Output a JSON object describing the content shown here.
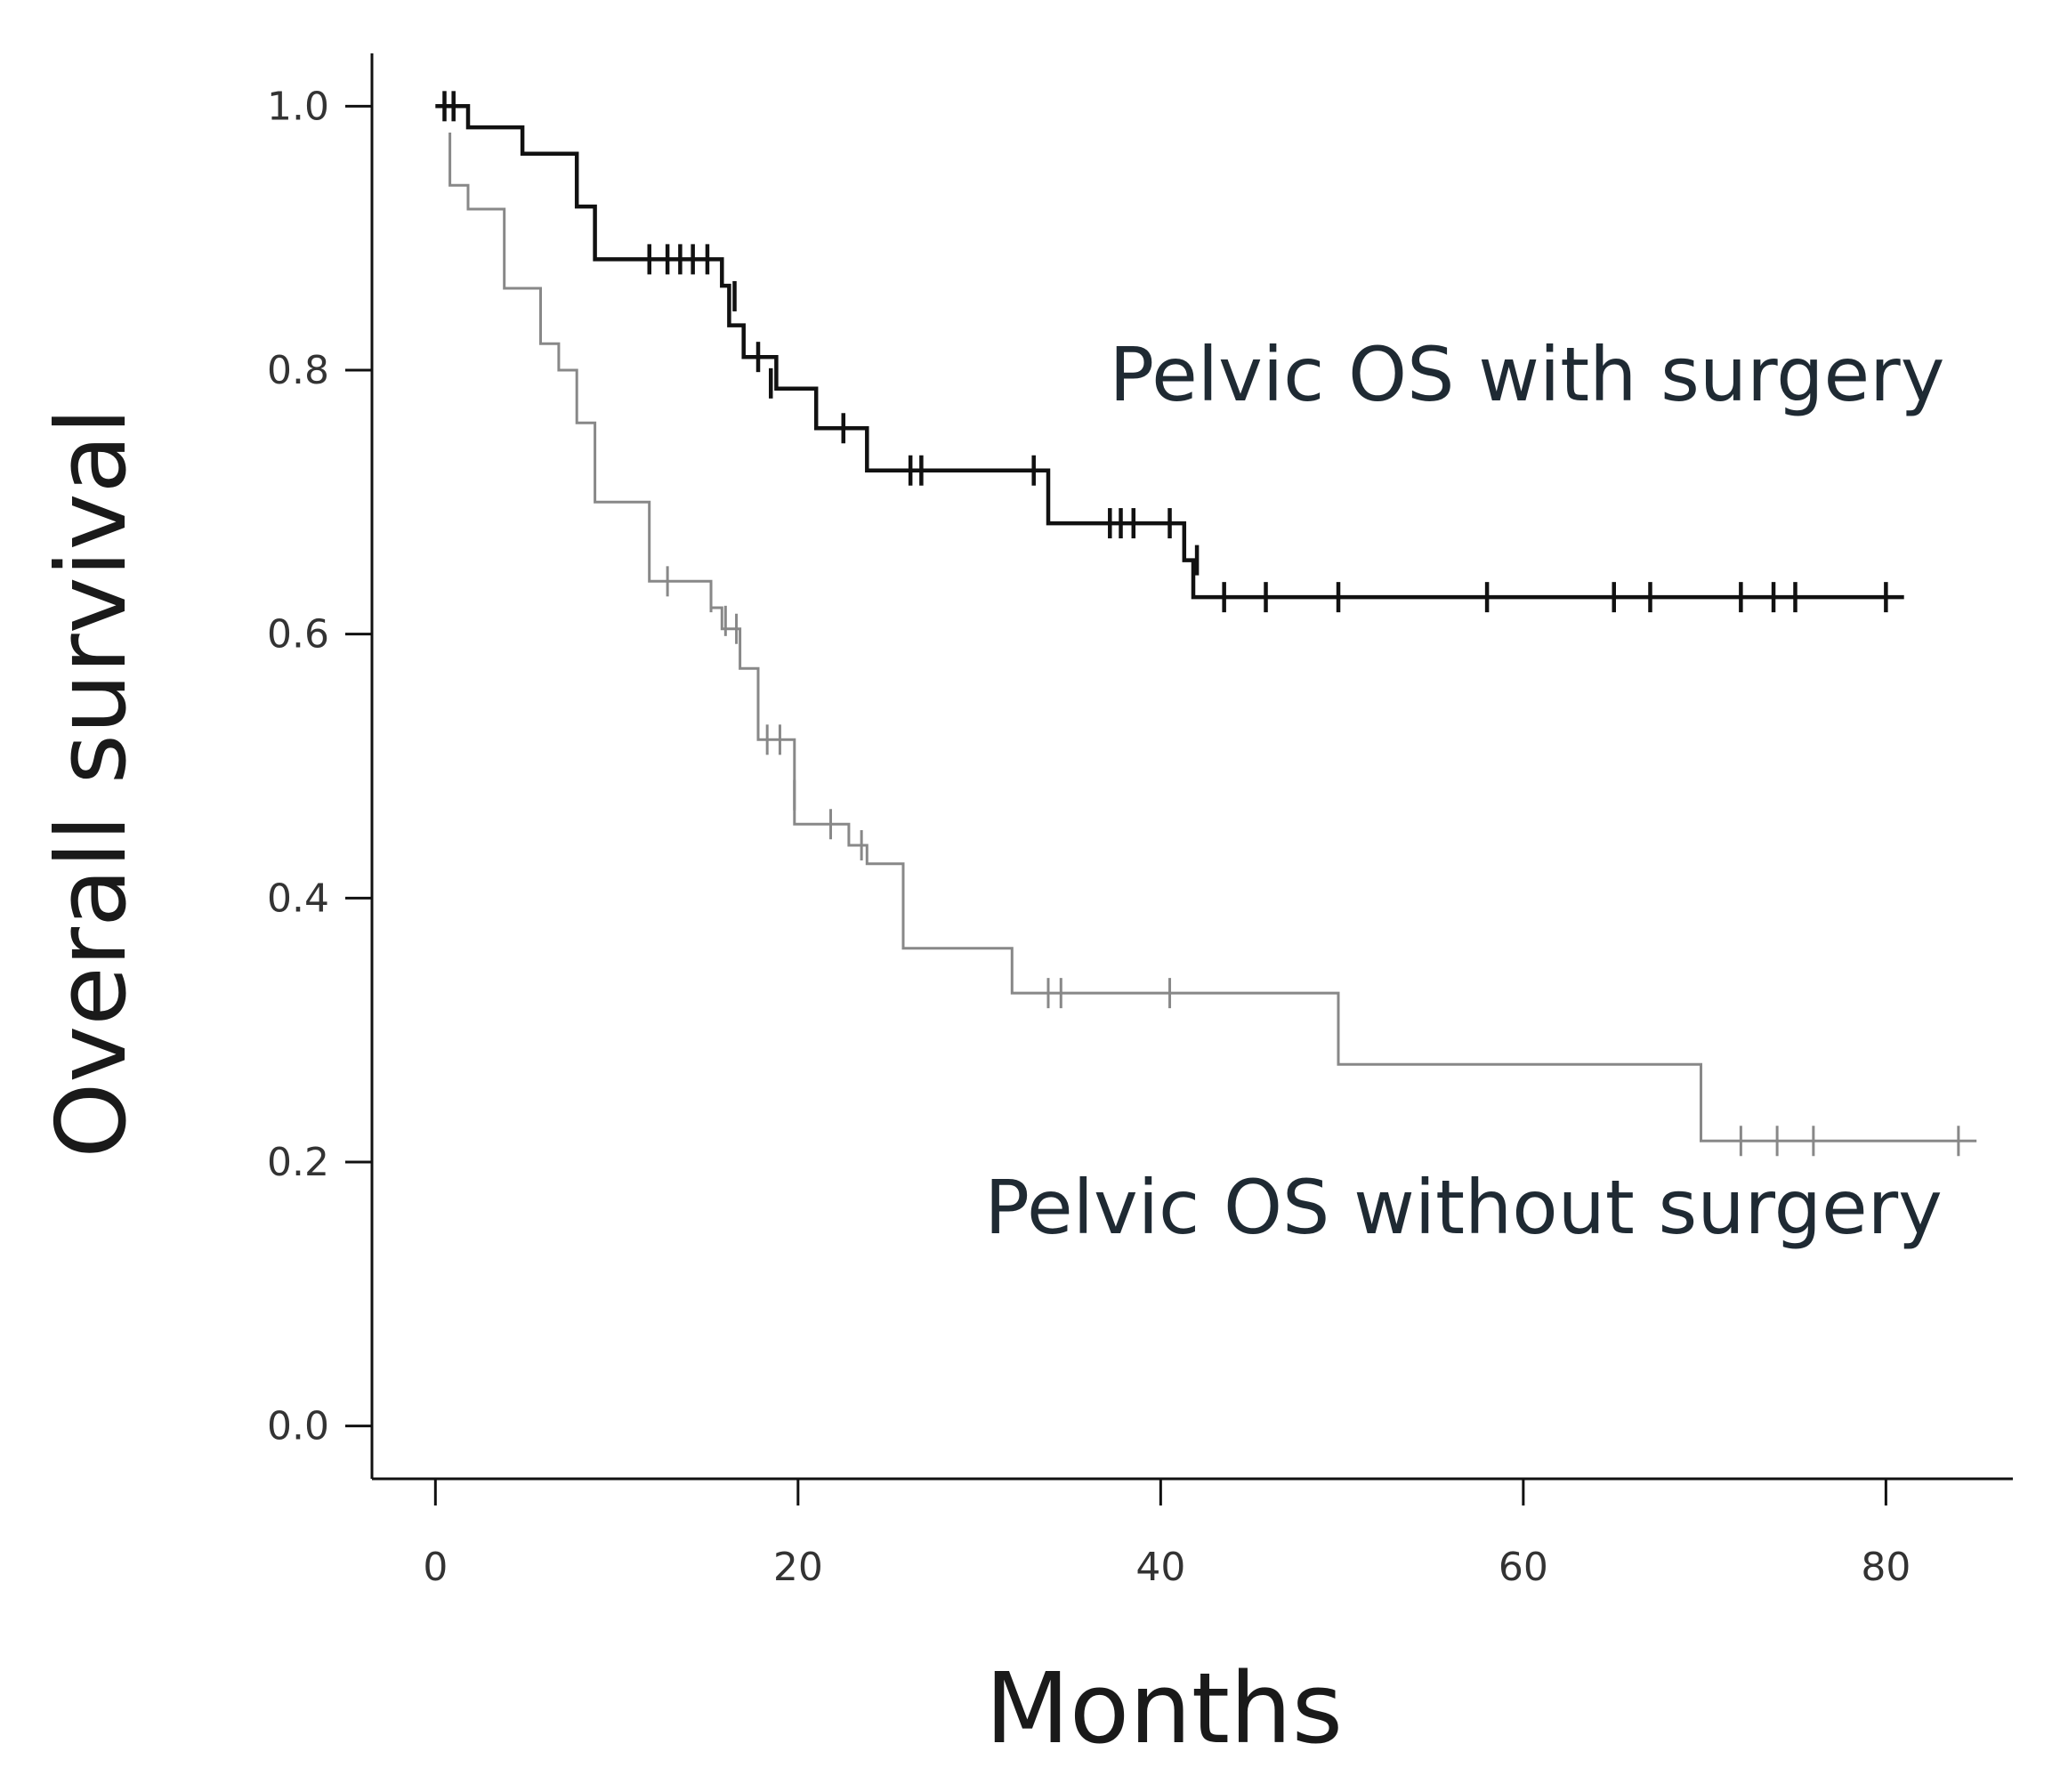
{
  "chart_data": {
    "type": "line",
    "title": "",
    "xlabel": "Months",
    "ylabel": "Overall survival",
    "xlim": [
      -3.5,
      87
    ],
    "ylim": [
      -0.04,
      1.04
    ],
    "x_ticks": [
      0,
      20,
      40,
      60,
      80
    ],
    "y_ticks": [
      0.0,
      0.2,
      0.4,
      0.6,
      0.8,
      1.0
    ],
    "x_tick_labels": [
      "0",
      "20",
      "40",
      "60",
      "80"
    ],
    "y_tick_labels": [
      "0.0",
      "0.2",
      "0.4",
      "0.6",
      "0.8",
      "1.0"
    ],
    "grid": false,
    "series": [
      {
        "name": "Pelvic OS with surgery",
        "label": "Pelvic OS with surgery",
        "color": "#111111",
        "style": "step",
        "points": [
          [
            0,
            1.0
          ],
          [
            1.8,
            1.0
          ],
          [
            1.8,
            0.984
          ],
          [
            4.8,
            0.984
          ],
          [
            4.8,
            0.964
          ],
          [
            7.8,
            0.964
          ],
          [
            7.8,
            0.924
          ],
          [
            8.8,
            0.924
          ],
          [
            8.8,
            0.884
          ],
          [
            15.8,
            0.884
          ],
          [
            15.8,
            0.864
          ],
          [
            16.2,
            0.864
          ],
          [
            16.2,
            0.834
          ],
          [
            17.0,
            0.834
          ],
          [
            17.0,
            0.81
          ],
          [
            18.8,
            0.81
          ],
          [
            18.8,
            0.786
          ],
          [
            21.0,
            0.786
          ],
          [
            21.0,
            0.756
          ],
          [
            23.8,
            0.756
          ],
          [
            23.8,
            0.724
          ],
          [
            33.8,
            0.724
          ],
          [
            33.8,
            0.684
          ],
          [
            41.3,
            0.684
          ],
          [
            41.3,
            0.656
          ],
          [
            41.8,
            0.656
          ],
          [
            41.8,
            0.628
          ],
          [
            81.0,
            0.628
          ]
        ],
        "censors": [
          [
            0.5,
            1.0
          ],
          [
            1.0,
            1.0
          ],
          [
            11.8,
            0.884
          ],
          [
            12.8,
            0.884
          ],
          [
            13.5,
            0.884
          ],
          [
            14.2,
            0.884
          ],
          [
            15.0,
            0.884
          ],
          [
            16.5,
            0.856
          ],
          [
            17.8,
            0.81
          ],
          [
            18.5,
            0.79
          ],
          [
            22.5,
            0.756
          ],
          [
            26.2,
            0.724
          ],
          [
            26.8,
            0.724
          ],
          [
            33.0,
            0.724
          ],
          [
            37.2,
            0.684
          ],
          [
            37.8,
            0.684
          ],
          [
            38.5,
            0.684
          ],
          [
            40.5,
            0.684
          ],
          [
            42.0,
            0.656
          ],
          [
            43.5,
            0.628
          ],
          [
            45.8,
            0.628
          ],
          [
            49.8,
            0.628
          ],
          [
            58.0,
            0.628
          ],
          [
            65.0,
            0.628
          ],
          [
            67.0,
            0.628
          ],
          [
            72.0,
            0.628
          ],
          [
            73.8,
            0.628
          ],
          [
            75.0,
            0.628
          ],
          [
            80.0,
            0.628
          ]
        ]
      },
      {
        "name": "Pelvic OS without surgery",
        "label": "Pelvic OS without surgery",
        "color": "#888888",
        "style": "step",
        "points": [
          [
            0.8,
            0.98
          ],
          [
            0.8,
            0.94
          ],
          [
            1.8,
            0.94
          ],
          [
            1.8,
            0.922
          ],
          [
            3.8,
            0.922
          ],
          [
            3.8,
            0.862
          ],
          [
            5.8,
            0.862
          ],
          [
            5.8,
            0.82
          ],
          [
            6.8,
            0.82
          ],
          [
            6.8,
            0.8
          ],
          [
            7.8,
            0.8
          ],
          [
            7.8,
            0.76
          ],
          [
            8.8,
            0.76
          ],
          [
            8.8,
            0.7
          ],
          [
            11.8,
            0.7
          ],
          [
            11.8,
            0.64
          ],
          [
            15.2,
            0.64
          ],
          [
            15.2,
            0.62
          ],
          [
            15.8,
            0.62
          ],
          [
            15.8,
            0.604
          ],
          [
            16.8,
            0.604
          ],
          [
            16.8,
            0.574
          ],
          [
            17.8,
            0.574
          ],
          [
            17.8,
            0.52
          ],
          [
            19.8,
            0.52
          ],
          [
            19.8,
            0.456
          ],
          [
            22.8,
            0.456
          ],
          [
            22.8,
            0.44
          ],
          [
            23.8,
            0.44
          ],
          [
            23.8,
            0.426
          ],
          [
            25.8,
            0.426
          ],
          [
            25.8,
            0.362
          ],
          [
            31.8,
            0.362
          ],
          [
            31.8,
            0.328
          ],
          [
            49.8,
            0.328
          ],
          [
            49.8,
            0.274
          ],
          [
            69.8,
            0.274
          ],
          [
            69.8,
            0.216
          ],
          [
            85.0,
            0.216
          ]
        ],
        "censors": [
          [
            12.8,
            0.64
          ],
          [
            15.2,
            0.628
          ],
          [
            16.0,
            0.61
          ],
          [
            16.6,
            0.604
          ],
          [
            18.3,
            0.52
          ],
          [
            19.0,
            0.52
          ],
          [
            19.8,
            0.478
          ],
          [
            21.8,
            0.456
          ],
          [
            23.5,
            0.44
          ],
          [
            33.8,
            0.328
          ],
          [
            34.5,
            0.328
          ],
          [
            40.5,
            0.328
          ],
          [
            72.0,
            0.216
          ],
          [
            74.0,
            0.216
          ],
          [
            76.0,
            0.216
          ],
          [
            84.0,
            0.216
          ]
        ]
      }
    ],
    "annotations": [
      {
        "text": "Pelvic OS with surgery",
        "x": 60.2,
        "y": 0.777
      },
      {
        "text": "Pelvic OS without surgery",
        "x": 56.7,
        "y": 0.146
      }
    ]
  }
}
